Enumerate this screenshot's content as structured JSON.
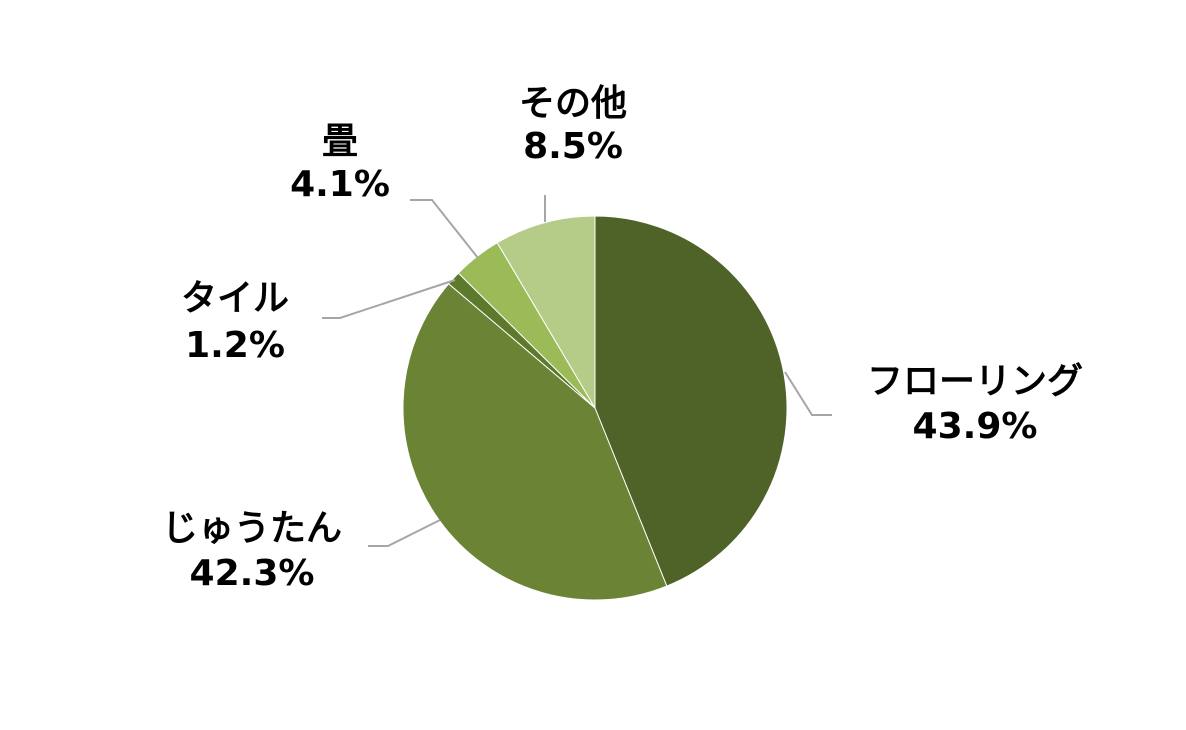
{
  "chart_data": {
    "type": "pie",
    "categories": [
      "フローリング",
      "じゅうたん",
      "タイル",
      "畳",
      "その他"
    ],
    "values": [
      43.9,
      42.3,
      1.2,
      4.1,
      8.5
    ],
    "value_labels": [
      "43.9%",
      "42.3%",
      "1.2%",
      "4.1%",
      "8.5%"
    ],
    "colors": [
      "#4f6228",
      "#6a8334",
      "#5d7a2c",
      "#9bbb59",
      "#b5cc88"
    ]
  }
}
